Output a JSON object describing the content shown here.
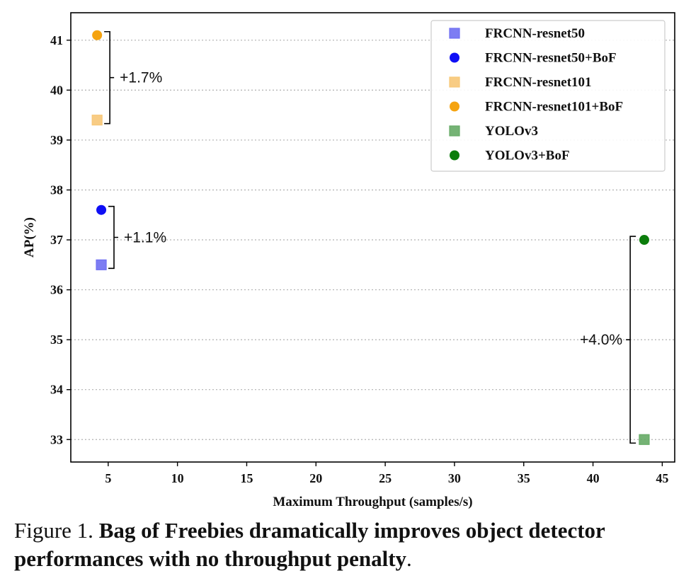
{
  "chart_data": {
    "type": "scatter",
    "title": "",
    "xlabel": "Maximum Throughput (samples/s)",
    "ylabel": "AP(%)",
    "xlim": [
      2.3,
      45.9
    ],
    "ylim": [
      32.55,
      41.55
    ],
    "xticks": [
      5,
      10,
      15,
      20,
      25,
      30,
      35,
      40,
      45
    ],
    "yticks": [
      33,
      34,
      35,
      36,
      37,
      38,
      39,
      40,
      41
    ],
    "grid": "horizontal-dotted",
    "legend_position": "top-right",
    "series": [
      {
        "name": "FRCNN-resnet50",
        "marker": "square",
        "color": "#6f6ff2",
        "points": [
          {
            "x": 4.5,
            "y": 36.5
          }
        ]
      },
      {
        "name": "FRCNN-resnet50+BoF",
        "marker": "circle",
        "color": "#0f0ff5",
        "points": [
          {
            "x": 4.5,
            "y": 37.6
          }
        ]
      },
      {
        "name": "FRCNN-resnet101",
        "marker": "square",
        "color": "#f7c777",
        "points": [
          {
            "x": 4.2,
            "y": 39.4
          }
        ]
      },
      {
        "name": "FRCNN-resnet101+BoF",
        "marker": "circle",
        "color": "#f5a30f",
        "points": [
          {
            "x": 4.2,
            "y": 41.1
          }
        ]
      },
      {
        "name": "YOLOv3",
        "marker": "square",
        "color": "#66ab66",
        "points": [
          {
            "x": 43.7,
            "y": 33.0
          }
        ]
      },
      {
        "name": "YOLOv3+BoF",
        "marker": "circle",
        "color": "#0c7d0c",
        "points": [
          {
            "x": 43.7,
            "y": 37.0
          }
        ]
      }
    ],
    "annotations": [
      {
        "text": "+1.7%",
        "bracket_x": 4.3,
        "y_from": 39.4,
        "y_to": 41.1,
        "side": "right"
      },
      {
        "text": "+1.1%",
        "bracket_x": 4.6,
        "y_from": 36.5,
        "y_to": 37.6,
        "side": "right"
      },
      {
        "text": "+4.0%",
        "bracket_x": 43.3,
        "y_from": 33.0,
        "y_to": 37.0,
        "side": "left"
      }
    ]
  },
  "caption": {
    "lead": "Figure 1. ",
    "bold": "Bag of Freebies dramatically improves object detector performances with no throughput penalty",
    "tail": "."
  }
}
